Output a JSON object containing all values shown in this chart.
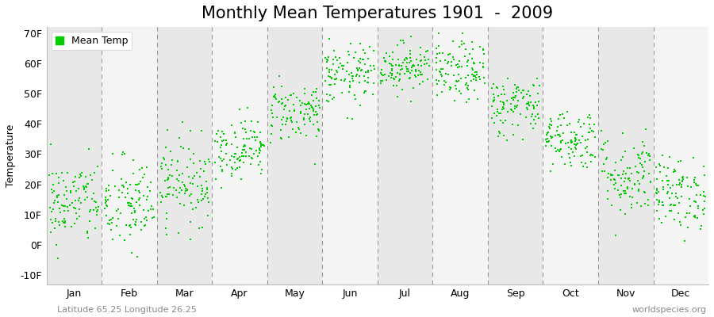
{
  "title": "Monthly Mean Temperatures 1901  -  2009",
  "ylabel": "Temperature",
  "xlabel": "",
  "ylim": [
    -13,
    72
  ],
  "yticks": [
    -10,
    0,
    10,
    20,
    30,
    40,
    50,
    60,
    70
  ],
  "ytick_labels": [
    "-10F",
    "0F",
    "10F",
    "20F",
    "30F",
    "40F",
    "50F",
    "60F",
    "70F"
  ],
  "month_labels": [
    "Jan",
    "Feb",
    "Mar",
    "Apr",
    "May",
    "Jun",
    "Jul",
    "Aug",
    "Sep",
    "Oct",
    "Nov",
    "Dec"
  ],
  "dot_color": "#00cc00",
  "dot_size": 3,
  "background_color": "#ffffff",
  "band_color_odd": "#e8e8e8",
  "band_color_even": "#f4f4f4",
  "subtitle_left": "Latitude 65.25 Longitude 26.25",
  "subtitle_right": "worldspecies.org",
  "legend_label": "Mean Temp",
  "title_fontsize": 15,
  "axis_label_fontsize": 9,
  "tick_fontsize": 9,
  "subtitle_fontsize": 8,
  "monthly_means": [
    14,
    13,
    21,
    32,
    44,
    56,
    59,
    57,
    46,
    35,
    23,
    17
  ],
  "monthly_stds": [
    7,
    8,
    7,
    5,
    5,
    5,
    4,
    5,
    5,
    5,
    7,
    6
  ],
  "n_years": 109,
  "seed": 42
}
